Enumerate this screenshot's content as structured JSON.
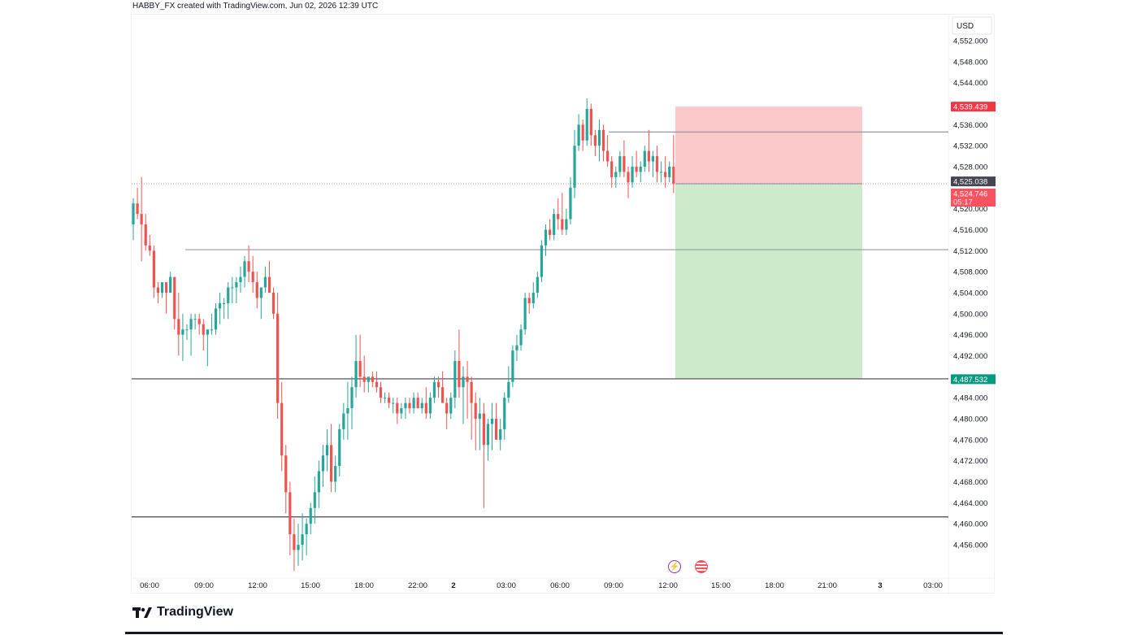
{
  "header": {
    "text": "HABBY_FX created with TradingView.com, Jun 02, 2026 12:39 UTC"
  },
  "brand": {
    "logo_text": "TradingView"
  },
  "icons": {
    "economic_event": "lightning-icon",
    "us_flag": "us-flag-icon"
  },
  "colors": {
    "bull": "#26a69a",
    "bear": "#ef5350",
    "stop_zone": "#fbc9c9",
    "target_zone": "#cdebcb",
    "stop_label": "#f23645",
    "target_label": "#089981",
    "last_price_label": "#434651",
    "current_price_label": "#f7525f"
  },
  "chart_data": {
    "type": "candlestick",
    "currency": "USD",
    "ylim": [
      4452.0,
      4556.0
    ],
    "y_ticks": [
      "4,552.000",
      "4,548.000",
      "4,544.000",
      "4,536.000",
      "4,532.000",
      "4,528.000",
      "4,520.000",
      "4,516.000",
      "4,512.000",
      "4,508.000",
      "4,504.000",
      "4,500.000",
      "4,496.000",
      "4,492.000",
      "4,484.000",
      "4,480.000",
      "4,476.000",
      "4,472.000",
      "4,468.000",
      "4,464.000",
      "4,460.000",
      "4,456.000"
    ],
    "y_tick_values": [
      4552,
      4548,
      4544,
      4536,
      4532,
      4528,
      4520,
      4516,
      4512,
      4508,
      4504,
      4500,
      4496,
      4492,
      4484,
      4480,
      4476,
      4472,
      4468,
      4464,
      4460,
      4456
    ],
    "x_labels": [
      "06:00",
      "09:00",
      "12:00",
      "15:00",
      "18:00",
      "22:00",
      "2",
      "03:00",
      "06:00",
      "09:00",
      "12:00",
      "15:00",
      "18:00",
      "21:00",
      "3",
      "03:00"
    ],
    "bold_x_labels": [
      "2",
      "3"
    ],
    "price_labels": [
      {
        "role": "stop",
        "text": "4,539.439",
        "value": 4539.439
      },
      {
        "role": "last",
        "text": "4,525.038",
        "value": 4525.038
      },
      {
        "role": "current",
        "text": "4,524.746",
        "value": 4524.746,
        "countdown": "05:17"
      },
      {
        "role": "target",
        "text": "4,487.532",
        "value": 4487.532
      }
    ],
    "horizontal_levels": [
      {
        "value": 4534.6,
        "color": "#9598a1"
      },
      {
        "value": 4512.2,
        "color": "#9598a1"
      },
      {
        "value": 4487.6,
        "color": "#434651"
      },
      {
        "value": 4461.3,
        "color": "#434651"
      }
    ],
    "position": {
      "side": "short",
      "entry": 4524.746,
      "stop": 4539.439,
      "target": 4487.532
    },
    "candles": [
      [
        4517.0,
        4522.0,
        4514.0,
        4521.0
      ],
      [
        4521.0,
        4524.0,
        4518.0,
        4519.0
      ],
      [
        4519.0,
        4526.0,
        4510.0,
        4517.0
      ],
      [
        4517.0,
        4519.0,
        4512.0,
        4513.0
      ],
      [
        4513.0,
        4515.0,
        4511.0,
        4512.0
      ],
      [
        4512.0,
        4513.0,
        4503.0,
        4505.0
      ],
      [
        4505.0,
        4506.0,
        4502.0,
        4504.0
      ],
      [
        4504.0,
        4506.0,
        4503.0,
        4506.0
      ],
      [
        4506.0,
        4506.0,
        4500.0,
        4504.0
      ],
      [
        4504.0,
        4508.0,
        4504.0,
        4507.0
      ],
      [
        4507.0,
        4507.0,
        4497.0,
        4499.0
      ],
      [
        4499.0,
        4504.0,
        4492.0,
        4496.0
      ],
      [
        4496.0,
        4500.0,
        4491.0,
        4497.0
      ],
      [
        4497.0,
        4498.0,
        4495.0,
        4497.0
      ],
      [
        4497.0,
        4500.0,
        4492.0,
        4499.0
      ],
      [
        4499.0,
        4500.0,
        4497.0,
        4499.0
      ],
      [
        4499.0,
        4500.0,
        4496.0,
        4498.0
      ],
      [
        4498.0,
        4499.0,
        4493.0,
        4496.0
      ],
      [
        4496.0,
        4497.0,
        4490.0,
        4497.0
      ],
      [
        4497.0,
        4500.0,
        4496.0,
        4497.0
      ],
      [
        4497.0,
        4502.0,
        4496.0,
        4501.0
      ],
      [
        4501.0,
        4504.0,
        4498.0,
        4502.0
      ],
      [
        4502.0,
        4503.0,
        4499.0,
        4502.0
      ],
      [
        4502.0,
        4506.0,
        4499.0,
        4505.0
      ],
      [
        4505.0,
        4507.0,
        4502.0,
        4505.0
      ],
      [
        4505.0,
        4507.0,
        4502.0,
        4506.0
      ],
      [
        4506.0,
        4509.0,
        4504.0,
        4507.0
      ],
      [
        4507.0,
        4511.0,
        4505.0,
        4510.0
      ],
      [
        4510.0,
        4513.0,
        4506.0,
        4508.0
      ],
      [
        4508.0,
        4511.0,
        4504.0,
        4506.0
      ],
      [
        4506.0,
        4508.0,
        4501.0,
        4503.0
      ],
      [
        4503.0,
        4505.0,
        4499.0,
        4505.0
      ],
      [
        4505.0,
        4509.0,
        4504.0,
        4507.0
      ],
      [
        4507.0,
        4510.0,
        4504.0,
        4504.0
      ],
      [
        4504.0,
        4505.0,
        4499.0,
        4500.0
      ],
      [
        4500.0,
        4504.0,
        4480.0,
        4483.0
      ],
      [
        4483.0,
        4487.0,
        4470.0,
        4473.0
      ],
      [
        4473.0,
        4475.0,
        4462.0,
        4466.0
      ],
      [
        4466.0,
        4468.0,
        4454.0,
        4458.0
      ],
      [
        4458.0,
        4461.0,
        4451.0,
        4455.0
      ],
      [
        4455.0,
        4460.0,
        4452.0,
        4456.0
      ],
      [
        4456.0,
        4462.0,
        4453.0,
        4458.0
      ],
      [
        4458.0,
        4461.0,
        4454.0,
        4460.0
      ],
      [
        4460.0,
        4464.0,
        4458.0,
        4463.0
      ],
      [
        4463.0,
        4469.0,
        4460.0,
        4466.0
      ],
      [
        4466.0,
        4472.0,
        4463.0,
        4470.0
      ],
      [
        4470.0,
        4475.0,
        4467.0,
        4473.0
      ],
      [
        4473.0,
        4478.0,
        4470.0,
        4475.0
      ],
      [
        4475.0,
        4479.0,
        4466.0,
        4468.0
      ],
      [
        4468.0,
        4473.0,
        4466.0,
        4471.0
      ],
      [
        4471.0,
        4479.0,
        4469.0,
        4478.0
      ],
      [
        4478.0,
        4483.0,
        4476.0,
        4481.0
      ],
      [
        4481.0,
        4487.0,
        4476.0,
        4482.0
      ],
      [
        4482.0,
        4488.0,
        4478.0,
        4486.0
      ],
      [
        4486.0,
        4496.0,
        4484.0,
        4491.0
      ],
      [
        4491.0,
        4496.0,
        4486.0,
        4488.0
      ],
      [
        4488.0,
        4492.0,
        4485.0,
        4487.0
      ],
      [
        4487.0,
        4488.0,
        4485.0,
        4488.0
      ],
      [
        4488.0,
        4489.0,
        4486.0,
        4487.0
      ],
      [
        4487.0,
        4489.0,
        4485.0,
        4486.0
      ],
      [
        4486.0,
        4487.0,
        4483.0,
        4484.0
      ],
      [
        4484.0,
        4485.0,
        4483.0,
        4484.0
      ],
      [
        4484.0,
        4485.0,
        4482.0,
        4483.0
      ],
      [
        4483.0,
        4484.0,
        4481.0,
        4483.0
      ],
      [
        4483.0,
        4484.0,
        4479.0,
        4481.0
      ],
      [
        4481.0,
        4483.0,
        4480.0,
        4482.0
      ],
      [
        4482.0,
        4484.0,
        4480.0,
        4483.0
      ],
      [
        4483.0,
        4484.0,
        4481.0,
        4482.0
      ],
      [
        4482.0,
        4485.0,
        4481.0,
        4484.0
      ],
      [
        4484.0,
        4485.0,
        4482.0,
        4482.0
      ],
      [
        4482.0,
        4484.0,
        4481.0,
        4483.0
      ],
      [
        4483.0,
        4486.0,
        4480.0,
        4481.0
      ],
      [
        4481.0,
        4485.0,
        4480.0,
        4484.0
      ],
      [
        4484.0,
        4488.0,
        4483.0,
        4487.0
      ],
      [
        4487.0,
        4488.0,
        4484.0,
        4486.0
      ],
      [
        4486.0,
        4489.0,
        4483.0,
        4483.0
      ],
      [
        4483.0,
        4484.0,
        4478.0,
        4481.0
      ],
      [
        4481.0,
        4485.0,
        4480.0,
        4484.0
      ],
      [
        4484.0,
        4493.0,
        4482.0,
        4491.0
      ],
      [
        4491.0,
        4497.0,
        4484.0,
        4486.0
      ],
      [
        4486.0,
        4490.0,
        4479.0,
        4488.0
      ],
      [
        4488.0,
        4491.0,
        4480.0,
        4487.0
      ],
      [
        4487.0,
        4488.0,
        4476.0,
        4483.0
      ],
      [
        4483.0,
        4485.0,
        4474.0,
        4480.0
      ],
      [
        4480.0,
        4484.0,
        4474.0,
        4481.0
      ],
      [
        4481.0,
        4483.0,
        4463.0,
        4475.0
      ],
      [
        4475.0,
        4480.0,
        4472.0,
        4479.0
      ],
      [
        4479.0,
        4483.0,
        4474.0,
        4480.0
      ],
      [
        4480.0,
        4483.0,
        4476.0,
        4476.0
      ],
      [
        4476.0,
        4480.0,
        4474.0,
        4478.0
      ],
      [
        4478.0,
        4485.0,
        4476.0,
        4484.0
      ],
      [
        4484.0,
        4490.0,
        4483.0,
        4487.0
      ],
      [
        4487.0,
        4494.0,
        4486.0,
        4493.0
      ],
      [
        4493.0,
        4496.0,
        4491.0,
        4494.0
      ],
      [
        4494.0,
        4498.0,
        4493.0,
        4497.0
      ],
      [
        4497.0,
        4504.0,
        4496.0,
        4503.0
      ],
      [
        4503.0,
        4504.0,
        4500.0,
        4502.0
      ],
      [
        4502.0,
        4506.0,
        4501.0,
        4504.0
      ],
      [
        4504.0,
        4508.0,
        4503.0,
        4507.0
      ],
      [
        4507.0,
        4514.0,
        4506.0,
        4513.0
      ],
      [
        4513.0,
        4517.0,
        4511.0,
        4516.0
      ],
      [
        4516.0,
        4518.0,
        4514.0,
        4515.0
      ],
      [
        4515.0,
        4520.0,
        4514.0,
        4519.0
      ],
      [
        4519.0,
        4522.0,
        4516.0,
        4518.0
      ],
      [
        4518.0,
        4523.0,
        4515.0,
        4516.0
      ],
      [
        4516.0,
        4520.0,
        4515.0,
        4518.0
      ],
      [
        4518.0,
        4526.0,
        4517.0,
        4524.0
      ],
      [
        4524.0,
        4535.0,
        4522.0,
        4532.0
      ],
      [
        4532.0,
        4538.0,
        4531.0,
        4536.0
      ],
      [
        4536.0,
        4537.0,
        4531.0,
        4533.0
      ],
      [
        4533.0,
        4541.0,
        4532.0,
        4539.0
      ],
      [
        4539.0,
        4540.0,
        4532.0,
        4534.0
      ],
      [
        4534.0,
        4535.0,
        4530.0,
        4532.0
      ],
      [
        4532.0,
        4537.0,
        4529.0,
        4535.0
      ],
      [
        4535.0,
        4536.0,
        4529.0,
        4531.0
      ],
      [
        4531.0,
        4534.0,
        4528.0,
        4529.0
      ],
      [
        4529.0,
        4530.0,
        4524.0,
        4526.0
      ],
      [
        4526.0,
        4528.0,
        4524.0,
        4527.0
      ],
      [
        4527.0,
        4531.0,
        4526.0,
        4530.0
      ],
      [
        4530.0,
        4533.0,
        4526.0,
        4527.0
      ],
      [
        4527.0,
        4528.0,
        4522.0,
        4525.0
      ],
      [
        4525.0,
        4530.0,
        4524.0,
        4528.0
      ],
      [
        4528.0,
        4531.0,
        4526.0,
        4527.0
      ],
      [
        4527.0,
        4529.0,
        4525.0,
        4528.0
      ],
      [
        4528.0,
        4532.0,
        4527.0,
        4531.0
      ],
      [
        4531.0,
        4535.0,
        4527.0,
        4529.0
      ],
      [
        4529.0,
        4531.0,
        4526.0,
        4530.0
      ],
      [
        4530.0,
        4532.0,
        4525.0,
        4527.0
      ],
      [
        4527.0,
        4529.0,
        4525.0,
        4527.0
      ],
      [
        4527.0,
        4530.0,
        4524.0,
        4526.0
      ],
      [
        4526.0,
        4529.0,
        4525.0,
        4528.0
      ],
      [
        4528.0,
        4534.0,
        4523.0,
        4524.7
      ]
    ]
  }
}
